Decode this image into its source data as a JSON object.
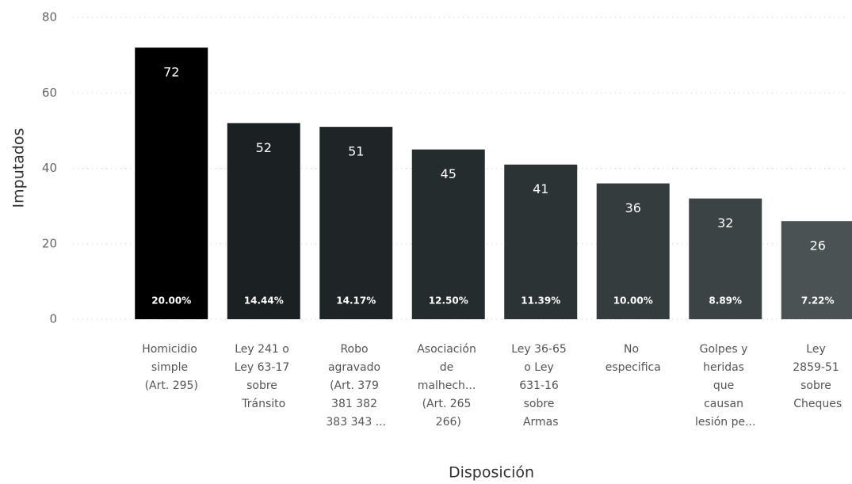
{
  "chart_data": {
    "type": "bar",
    "x_label": "Disposición",
    "y_label": "Imputados",
    "categories": [
      "Homicidio\nsimple\n(Art. 295)",
      "Ley 241 o\nLey 63-17\nsobre\nTránsito",
      "Robo\nagravado\n(Art. 379\n381 382\n383 343 ...",
      "Asociación\nde\nmalhech...\n(Art. 265\n266)",
      "Ley 36-65\no Ley\n631-16\nsobre\nArmas",
      "No\nespecifica",
      "Golpes y\nheridas\nque\ncausan\nlesión pe...",
      "Ley\n2859-51\nsobre\nCheques"
    ],
    "values": [
      72,
      52,
      51,
      45,
      41,
      36,
      32,
      26
    ],
    "shares": [
      20.0,
      14.44,
      14.17,
      12.5,
      11.39,
      10.0,
      8.89,
      7.22
    ],
    "share_labels": [
      "20.00%",
      "14.44%",
      "14.17%",
      "12.50%",
      "11.39%",
      "10.00%",
      "8.89%",
      "7.22%"
    ],
    "colors": [
      "#000000",
      "#1b2022",
      "#1f2527",
      "#252c2e",
      "#2b3335",
      "#343c3e",
      "#3b4345",
      "#4a5254"
    ],
    "ylim": [
      0,
      80
    ],
    "yticks": [
      0,
      20,
      40,
      60,
      80
    ],
    "grid": true
  }
}
